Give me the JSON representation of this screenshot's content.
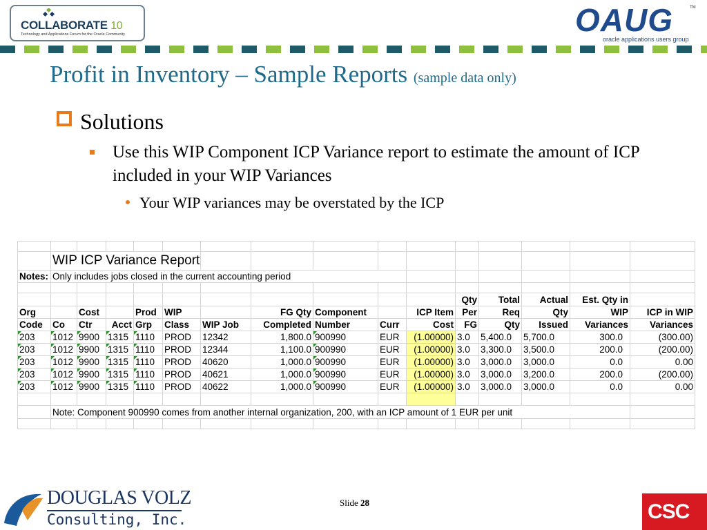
{
  "header": {
    "collaborate_name": "COLLABORATE",
    "collaborate_num": "10",
    "collaborate_tagline": "Technology and Applications Forum for the Oracle Community",
    "oaug_word": "OAUG",
    "oaug_tm": "TM",
    "oaug_tagline": "oracle applications users group"
  },
  "slide": {
    "title": "Profit in Inventory – Sample Reports",
    "title_note": "(sample data only)",
    "bullet1": "Solutions",
    "bullet2": "Use this WIP Component ICP Variance report to estimate the amount of ICP included in your WIP Variances",
    "bullet3": "Your WIP variances may be overstated by the ICP"
  },
  "report": {
    "title": "WIP ICP Variance Report",
    "notes_label": "Notes:",
    "notes_text": "Only includes jobs closed in the current accounting period",
    "headers": {
      "org": [
        "Org",
        "Code"
      ],
      "co": [
        "",
        "Co"
      ],
      "cost_ctr": [
        "Cost",
        "Ctr"
      ],
      "acct": [
        "",
        "Acct"
      ],
      "prod_grp": [
        "Prod",
        "Grp"
      ],
      "wip_class": [
        "WIP",
        "Class"
      ],
      "wip_job": [
        "",
        "WIP Job"
      ],
      "fg_qty": [
        "FG Qty",
        "Completed"
      ],
      "component": [
        "Component",
        "Number"
      ],
      "curr": [
        "",
        "Curr"
      ],
      "icp_cost": [
        "ICP Item",
        "Cost"
      ],
      "qty_per": [
        "Qty",
        "Per",
        "FG"
      ],
      "total_req": [
        "Total",
        "Req",
        "Qty"
      ],
      "actual_qty": [
        "Actual",
        "Qty",
        "Issued"
      ],
      "est_qty": [
        "Est. Qty in",
        "WIP",
        "Variances"
      ],
      "icp_wip": [
        "",
        "ICP in WIP",
        "Variances"
      ]
    },
    "rows": [
      [
        "203",
        "1012",
        "9900",
        "1315",
        "1110",
        "PROD",
        "12342",
        "1,800.0",
        "900990",
        "EUR",
        "(1.00000)",
        "3.0",
        "5,400.0",
        "5,700.0",
        "300.0",
        "(300.00)"
      ],
      [
        "203",
        "1012",
        "9900",
        "1315",
        "1110",
        "PROD",
        "12344",
        "1,100.0",
        "900990",
        "EUR",
        "(1.00000)",
        "3.0",
        "3,300.0",
        "3,500.0",
        "200.0",
        "(200.00)"
      ],
      [
        "203",
        "1012",
        "9900",
        "1315",
        "1110",
        "PROD",
        "40620",
        "1,000.0",
        "900990",
        "EUR",
        "(1.00000)",
        "3.0",
        "3,000.0",
        "3,000.0",
        "0.0",
        "0.00"
      ],
      [
        "203",
        "1012",
        "9900",
        "1315",
        "1110",
        "PROD",
        "40621",
        "1,000.0",
        "900990",
        "EUR",
        "(1.00000)",
        "3.0",
        "3,000.0",
        "3,200.0",
        "200.0",
        "(200.00)"
      ],
      [
        "203",
        "1012",
        "9900",
        "1315",
        "1110",
        "PROD",
        "40622",
        "1,000.0",
        "900990",
        "EUR",
        "(1.00000)",
        "3.0",
        "3,000.0",
        "3,000.0",
        "0.0",
        "0.00"
      ]
    ],
    "footnote": "Note:  Component 900990 comes from another internal organization, 200, with an ICP amount of 1 EUR per unit"
  },
  "footer": {
    "dv_name": "DOUGLAS VOLZ",
    "dv_sub": "Consulting, Inc.",
    "slide_word": "Slide",
    "slide_number": "28",
    "csc": "CSC"
  },
  "colors": {
    "title_blue": "#1f6a8a",
    "bullet_orange": "#e87b1e",
    "highlight_yellow": "#ffff99",
    "negative_red": "#d0242b",
    "csc_red": "#d71a21"
  }
}
